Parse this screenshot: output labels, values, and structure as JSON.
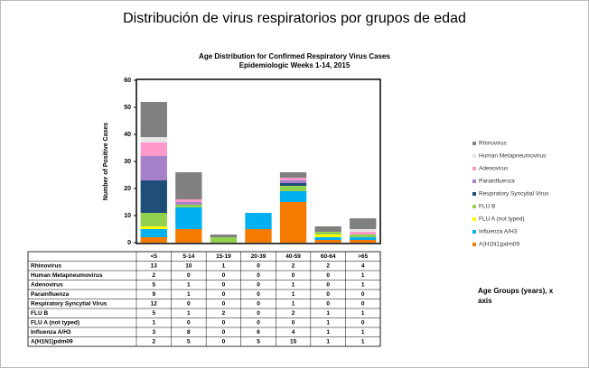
{
  "page_title": "Distribución de virus respiratorios por grupos de edad",
  "chart_data": {
    "type": "stacked_bar",
    "title": "Age Distribution for Confirmed Respiratory Virus Cases",
    "subtitle": "Epidemiologic Weeks 1-14, 2015",
    "ylabel": "Number of Positive Cases",
    "xlabel": "Age Groups (years), x axis",
    "categories": [
      "<5",
      "5-14",
      "15-19",
      "20-39",
      "40-59",
      "60-64",
      ">65"
    ],
    "ylim": [
      0,
      60
    ],
    "yticks": [
      0,
      10,
      20,
      30,
      40,
      50,
      60
    ],
    "legend": "right",
    "series": [
      {
        "name": "Rhinovirus",
        "color": "#808080",
        "values": [
          13,
          10,
          1,
          0,
          2,
          2,
          4
        ]
      },
      {
        "name": "Human Metapneumovirus",
        "color": "#e6e6e6",
        "values": [
          2,
          0,
          0,
          0,
          0,
          0,
          1
        ]
      },
      {
        "name": "Adenovirus",
        "color": "#ff99cc",
        "values": [
          5,
          1,
          0,
          0,
          1,
          0,
          1
        ]
      },
      {
        "name": "Parainfluenza",
        "color": "#a680c8",
        "values": [
          9,
          1,
          0,
          0,
          1,
          0,
          0
        ]
      },
      {
        "name": "Respiratory Syncytial Virus",
        "color": "#1f4e79",
        "values": [
          12,
          0,
          0,
          0,
          1,
          0,
          0
        ]
      },
      {
        "name": "FLU B",
        "color": "#92d050",
        "values": [
          5,
          1,
          2,
          0,
          2,
          1,
          1
        ]
      },
      {
        "name": "FLU A (not typed)",
        "color": "#ffff00",
        "values": [
          1,
          0,
          0,
          0,
          0,
          1,
          0
        ]
      },
      {
        "name": "Influenza A/H3",
        "color": "#00b0f0",
        "values": [
          3,
          8,
          0,
          6,
          4,
          1,
          1
        ]
      },
      {
        "name": "A(H1N1)pdm09",
        "color": "#f57c00",
        "values": [
          2,
          5,
          0,
          5,
          15,
          1,
          1
        ]
      }
    ]
  }
}
